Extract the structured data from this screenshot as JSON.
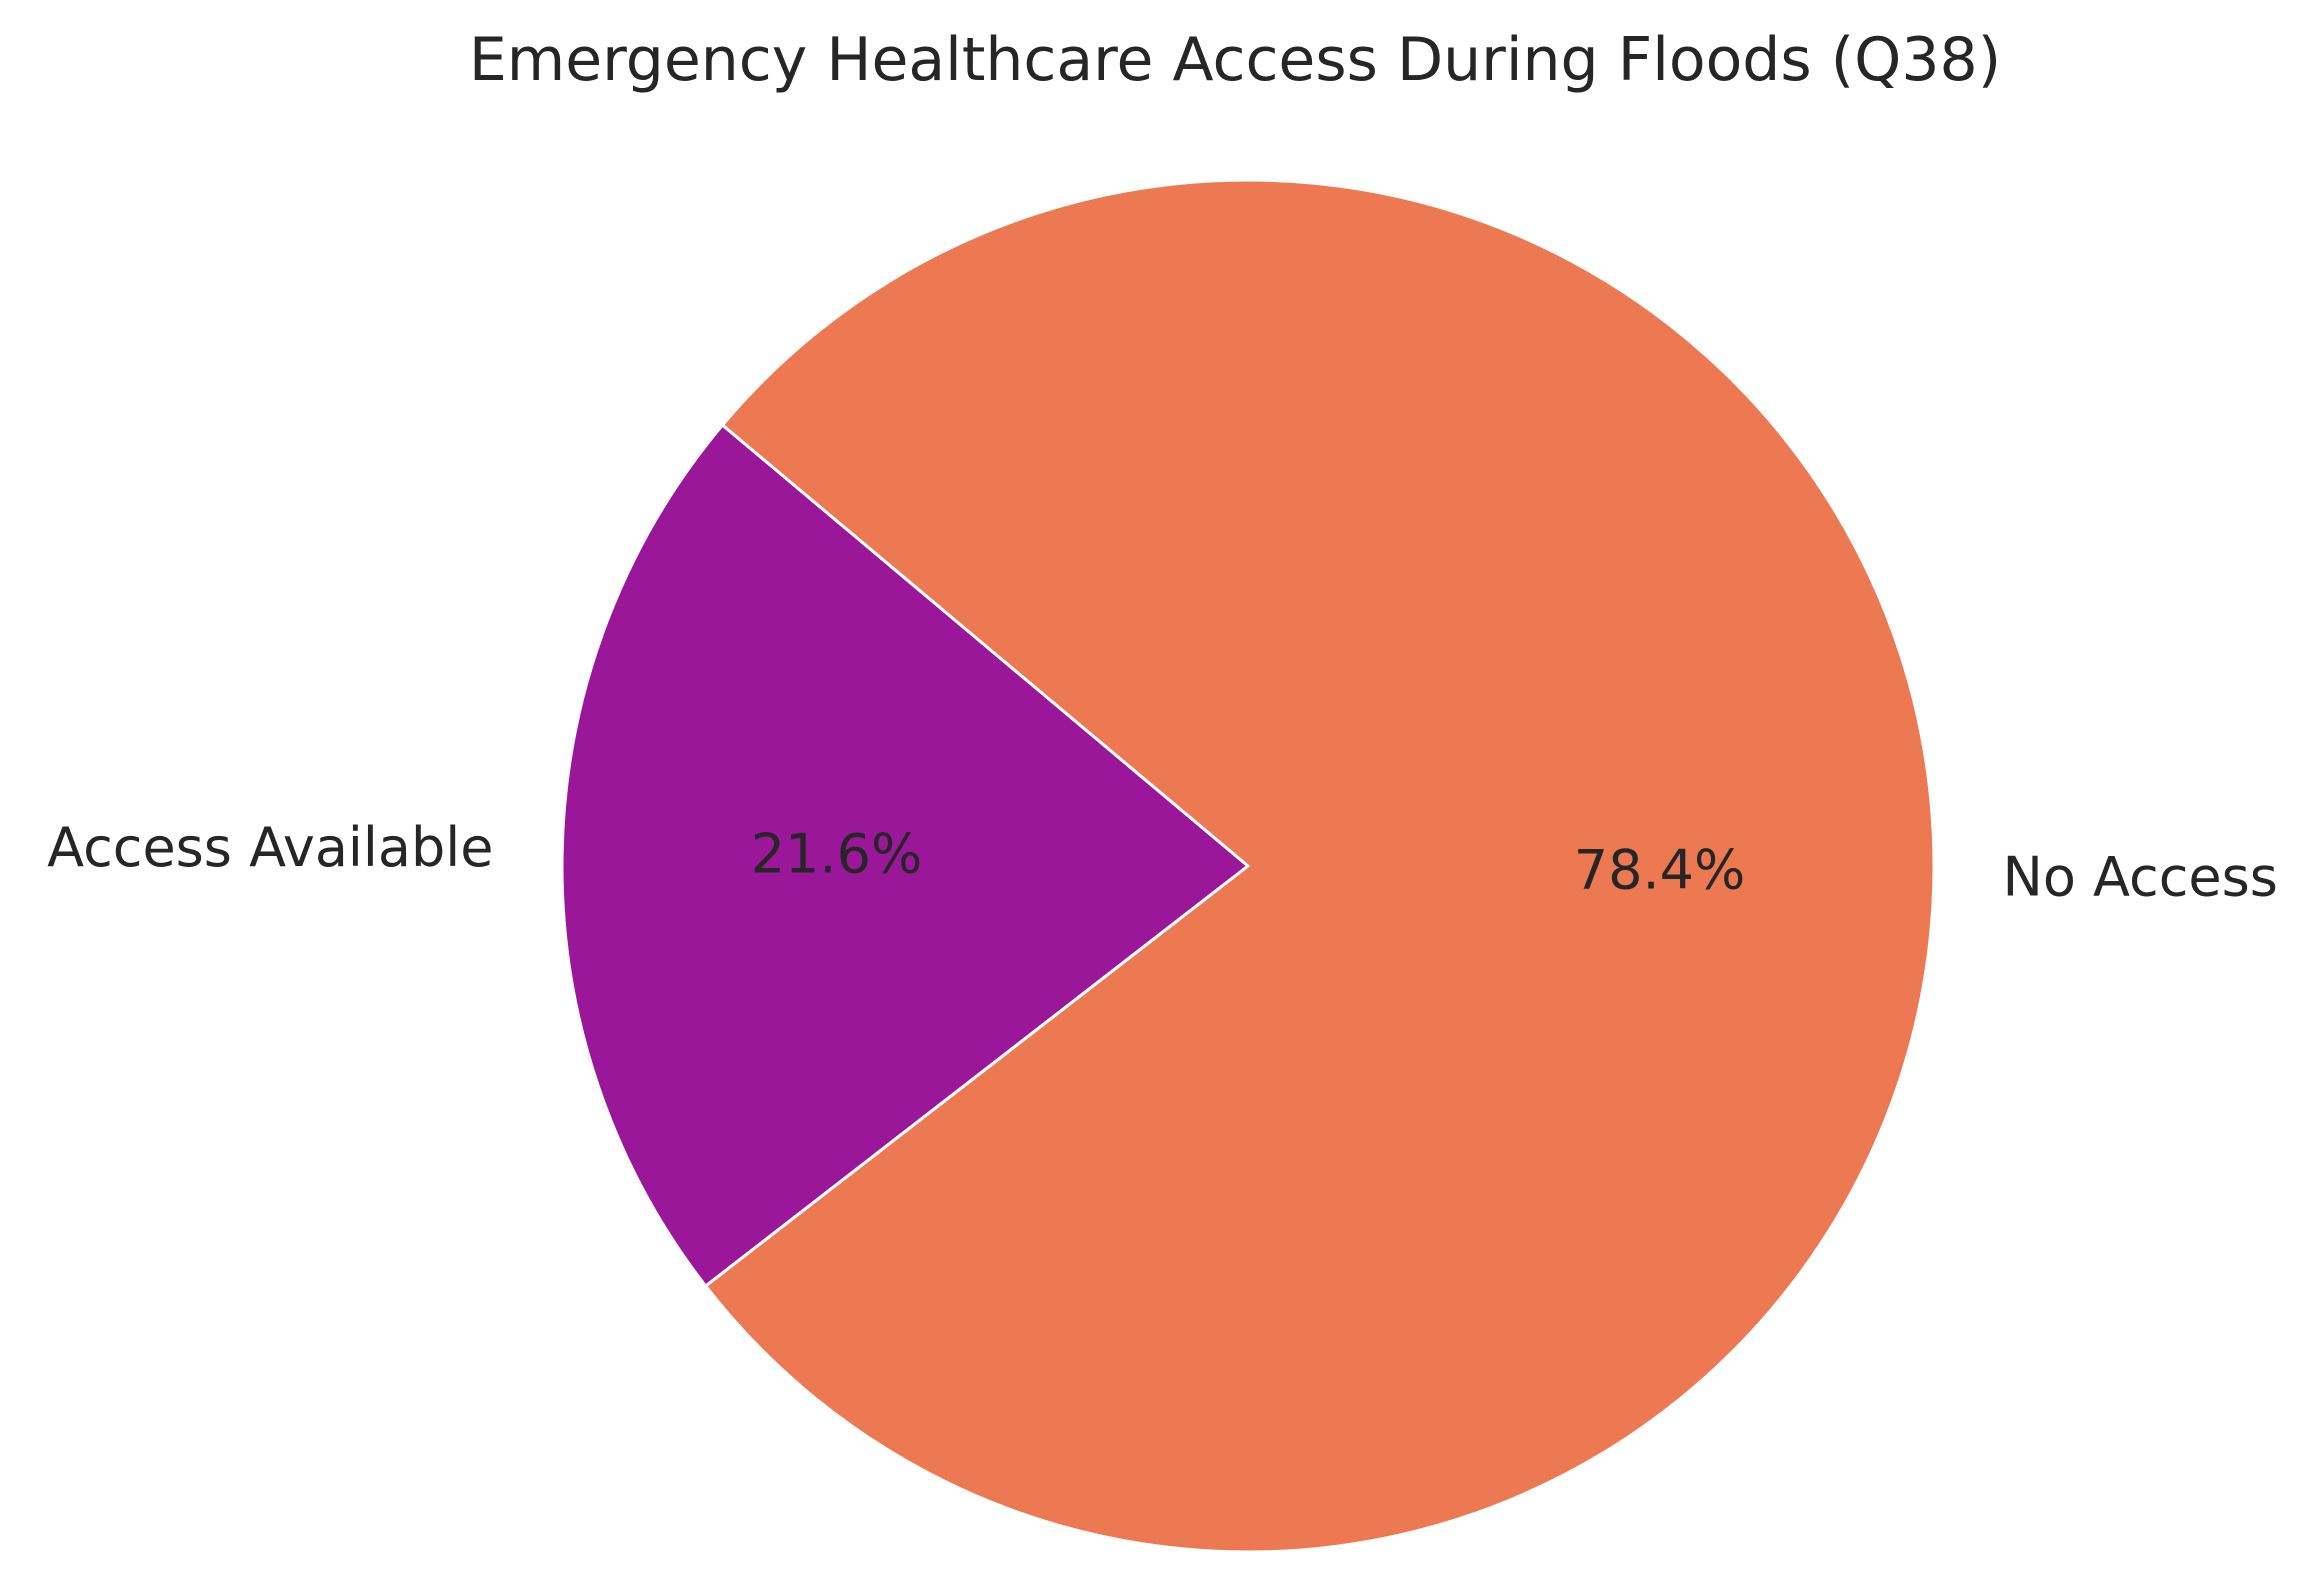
{
  "chart_data": {
    "type": "pie",
    "title": "Emergency Healthcare Access During Floods (Q38)",
    "categories": [
      "Access Available",
      "No Access"
    ],
    "values": [
      21.6,
      78.4
    ],
    "value_labels": [
      "21.6%",
      "78.4%"
    ],
    "colors": [
      "#9b179a",
      "#ed7953"
    ],
    "edge_color": "#ffffff",
    "start_angle_deg": 140,
    "direction": "counterclockwise",
    "legend": "none"
  }
}
